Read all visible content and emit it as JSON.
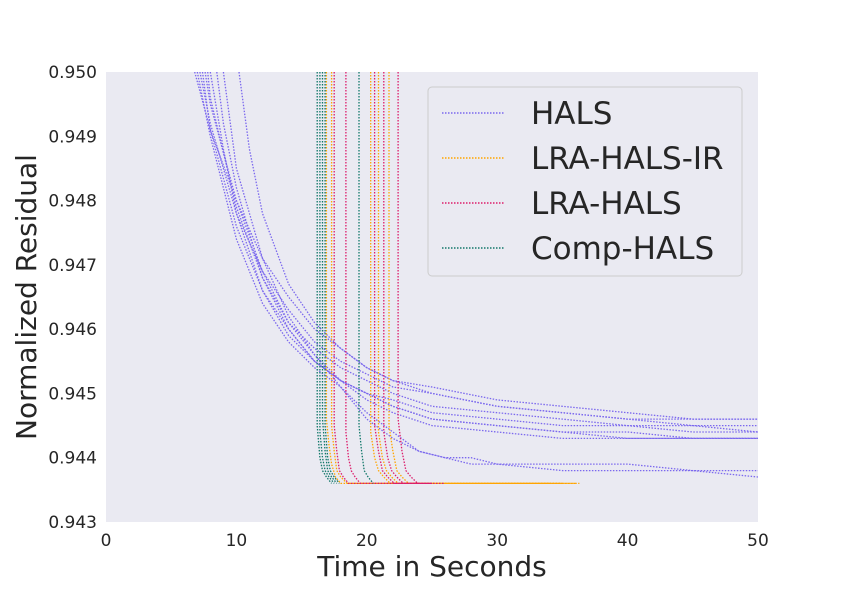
{
  "chart_data": {
    "type": "line",
    "title": "",
    "xlabel": "Time in Seconds",
    "ylabel": "Normalized Residual",
    "xlim": [
      0,
      50
    ],
    "ylim": [
      0.943,
      0.95
    ],
    "xticks": [
      0,
      10,
      20,
      30,
      40,
      50
    ],
    "yticks": [
      0.943,
      0.944,
      0.945,
      0.946,
      0.947,
      0.948,
      0.949,
      0.95
    ],
    "ytick_labels": [
      "0.943",
      "0.944",
      "0.945",
      "0.946",
      "0.947",
      "0.948",
      "0.949",
      "0.950"
    ],
    "grid": false,
    "legend_position": "top-right",
    "line_style": "dotted",
    "series": [
      {
        "name": "HALS",
        "color": "#7b68ee",
        "runs": [
          {
            "x": [
              6.8,
              8,
              10,
              12,
              14,
              16,
              18,
              20,
              22,
              25,
              30,
              35,
              40,
              45,
              50
            ],
            "y": [
              0.95,
              0.9491,
              0.948,
              0.9471,
              0.9465,
              0.946,
              0.9457,
              0.9454,
              0.9452,
              0.945,
              0.9448,
              0.9447,
              0.9446,
              0.9446,
              0.9446
            ]
          },
          {
            "x": [
              7.2,
              8,
              10,
              12,
              14,
              16,
              18,
              20,
              22,
              25,
              30,
              35,
              40,
              45,
              50
            ],
            "y": [
              0.95,
              0.9492,
              0.9478,
              0.9469,
              0.9463,
              0.9458,
              0.9455,
              0.9453,
              0.9451,
              0.945,
              0.9448,
              0.9447,
              0.9446,
              0.9445,
              0.9445
            ]
          },
          {
            "x": [
              7.6,
              8,
              10,
              12,
              14,
              16,
              18,
              20,
              22,
              25,
              30,
              35,
              40,
              45,
              50
            ],
            "y": [
              0.95,
              0.9495,
              0.948,
              0.9469,
              0.9461,
              0.9456,
              0.9452,
              0.945,
              0.9448,
              0.9446,
              0.9445,
              0.9444,
              0.9443,
              0.9443,
              0.9443
            ]
          },
          {
            "x": [
              8,
              9,
              10,
              12,
              14,
              16,
              18,
              20,
              22,
              25,
              30,
              35,
              40,
              45,
              50
            ],
            "y": [
              0.95,
              0.9488,
              0.9478,
              0.9466,
              0.9459,
              0.9455,
              0.9452,
              0.945,
              0.9448,
              0.9446,
              0.9445,
              0.9444,
              0.9444,
              0.9443,
              0.9443
            ]
          },
          {
            "x": [
              7,
              8,
              10,
              12,
              14,
              16,
              18,
              20,
              22,
              24,
              26,
              28,
              30,
              35,
              40,
              45,
              50
            ],
            "y": [
              0.95,
              0.949,
              0.9474,
              0.9464,
              0.9458,
              0.9454,
              0.9451,
              0.9447,
              0.9444,
              0.9441,
              0.944,
              0.9439,
              0.9439,
              0.9438,
              0.9438,
              0.9438,
              0.9437
            ]
          },
          {
            "x": [
              8.5,
              9,
              10,
              12,
              14,
              16,
              18,
              20,
              22,
              25,
              30,
              35,
              40,
              45,
              50
            ],
            "y": [
              0.95,
              0.9492,
              0.9482,
              0.9468,
              0.946,
              0.9455,
              0.9452,
              0.945,
              0.9449,
              0.9447,
              0.9446,
              0.9445,
              0.9445,
              0.9444,
              0.9444
            ]
          },
          {
            "x": [
              10.2,
              11,
              12,
              14,
              16,
              18,
              20,
              22,
              25,
              30,
              35,
              40,
              45,
              50
            ],
            "y": [
              0.95,
              0.9488,
              0.9478,
              0.9467,
              0.9461,
              0.9457,
              0.9454,
              0.9452,
              0.9451,
              0.9449,
              0.9448,
              0.9447,
              0.9446,
              0.9446
            ]
          },
          {
            "x": [
              7.4,
              8,
              10,
              12,
              14,
              16,
              18,
              20,
              22,
              25,
              30,
              35,
              40,
              45,
              50
            ],
            "y": [
              0.95,
              0.9491,
              0.9476,
              0.9466,
              0.946,
              0.9455,
              0.9452,
              0.9449,
              0.9447,
              0.9445,
              0.9444,
              0.9443,
              0.9443,
              0.9443,
              0.9443
            ]
          },
          {
            "x": [
              9,
              10,
              12,
              14,
              16,
              18,
              20,
              22,
              24,
              26,
              28,
              30,
              35,
              40,
              45,
              50
            ],
            "y": [
              0.95,
              0.9485,
              0.9471,
              0.9462,
              0.9456,
              0.9451,
              0.9446,
              0.9443,
              0.9441,
              0.944,
              0.944,
              0.9439,
              0.9439,
              0.9439,
              0.9438,
              0.9438
            ]
          },
          {
            "x": [
              7.8,
              8,
              10,
              12,
              14,
              16,
              18,
              20,
              22,
              25,
              30,
              35,
              40,
              45,
              50
            ],
            "y": [
              0.95,
              0.9496,
              0.9479,
              0.9468,
              0.9461,
              0.9457,
              0.9454,
              0.9452,
              0.945,
              0.9448,
              0.9447,
              0.9446,
              0.9445,
              0.9445,
              0.9444
            ]
          }
        ]
      },
      {
        "name": "LRA-HALS-IR",
        "color": "#ffa500",
        "runs": [
          {
            "x": [
              16.9,
              16.9,
              17.1,
              17.3,
              17.6,
              18,
              20,
              25,
              30,
              34
            ],
            "y": [
              0.95,
              0.9446,
              0.9442,
              0.9439,
              0.9437,
              0.9436,
              0.9436,
              0.9436,
              0.9436,
              0.9436
            ]
          },
          {
            "x": [
              17.3,
              17.3,
              17.5,
              17.7,
              18,
              18.5,
              20,
              25,
              30,
              35
            ],
            "y": [
              0.95,
              0.9445,
              0.9441,
              0.9438,
              0.9437,
              0.9436,
              0.9436,
              0.9436,
              0.9436,
              0.9436
            ]
          },
          {
            "x": [
              20.3,
              20.3,
              20.6,
              20.9,
              21.3,
              21.8,
              23,
              27,
              31,
              35
            ],
            "y": [
              0.95,
              0.9444,
              0.944,
              0.9438,
              0.9437,
              0.9436,
              0.9436,
              0.9436,
              0.9436,
              0.9436
            ]
          },
          {
            "x": [
              20.9,
              20.9,
              21.2,
              21.5,
              21.9,
              22.4,
              24,
              28,
              32,
              36.3
            ],
            "y": [
              0.95,
              0.9444,
              0.944,
              0.9438,
              0.9437,
              0.9436,
              0.9436,
              0.9436,
              0.9436,
              0.9436
            ]
          },
          {
            "x": [
              21.7,
              21.7,
              22,
              22.3,
              22.7,
              23.2,
              25,
              29,
              33,
              36
            ],
            "y": [
              0.95,
              0.9445,
              0.9441,
              0.9438,
              0.9437,
              0.9436,
              0.9436,
              0.9436,
              0.9436,
              0.9436
            ]
          }
        ]
      },
      {
        "name": "LRA-HALS",
        "color": "#dc1c6b",
        "runs": [
          {
            "x": [
              17.5,
              17.5,
              17.7,
              17.9,
              18.2,
              18.6,
              20,
              24
            ],
            "y": [
              0.95,
              0.9445,
              0.9441,
              0.9438,
              0.9437,
              0.9436,
              0.9436,
              0.9436
            ]
          },
          {
            "x": [
              18.4,
              18.4,
              18.6,
              18.8,
              19.1,
              19.5,
              21,
              25
            ],
            "y": [
              0.95,
              0.9444,
              0.944,
              0.9438,
              0.9437,
              0.9436,
              0.9436,
              0.9436
            ]
          },
          {
            "x": [
              20.6,
              20.6,
              20.9,
              21.2,
              21.6,
              22.1,
              24
            ],
            "y": [
              0.95,
              0.9445,
              0.9441,
              0.9438,
              0.9437,
              0.9436,
              0.9436
            ]
          },
          {
            "x": [
              21.3,
              21.3,
              21.6,
              21.9,
              22.3,
              22.8,
              25
            ],
            "y": [
              0.95,
              0.9444,
              0.944,
              0.9438,
              0.9437,
              0.9436,
              0.9436
            ]
          },
          {
            "x": [
              22.4,
              22.4,
              22.7,
              23,
              23.4,
              23.9,
              26
            ],
            "y": [
              0.95,
              0.9446,
              0.9441,
              0.9438,
              0.9437,
              0.9436,
              0.9436
            ]
          }
        ]
      },
      {
        "name": "Comp-HALS",
        "color": "#12786a",
        "runs": [
          {
            "x": [
              16.2,
              16.2,
              16.4,
              16.6,
              16.9,
              17.3
            ],
            "y": [
              0.95,
              0.9445,
              0.944,
              0.9438,
              0.9437,
              0.9436
            ]
          },
          {
            "x": [
              16.4,
              16.4,
              16.6,
              16.8,
              17.1,
              17.5
            ],
            "y": [
              0.95,
              0.9444,
              0.944,
              0.9438,
              0.9437,
              0.9436
            ]
          },
          {
            "x": [
              16.6,
              16.6,
              16.8,
              17,
              17.3,
              17.7
            ],
            "y": [
              0.95,
              0.9446,
              0.9441,
              0.9438,
              0.9437,
              0.9436
            ]
          },
          {
            "x": [
              16.8,
              16.8,
              17,
              17.2,
              17.5,
              17.9
            ],
            "y": [
              0.95,
              0.9445,
              0.944,
              0.9438,
              0.9437,
              0.9436
            ]
          },
          {
            "x": [
              19.4,
              19.4,
              19.6,
              19.8,
              20.1,
              20.5
            ],
            "y": [
              0.95,
              0.9445,
              0.9441,
              0.9438,
              0.9437,
              0.9436
            ]
          }
        ]
      }
    ]
  }
}
